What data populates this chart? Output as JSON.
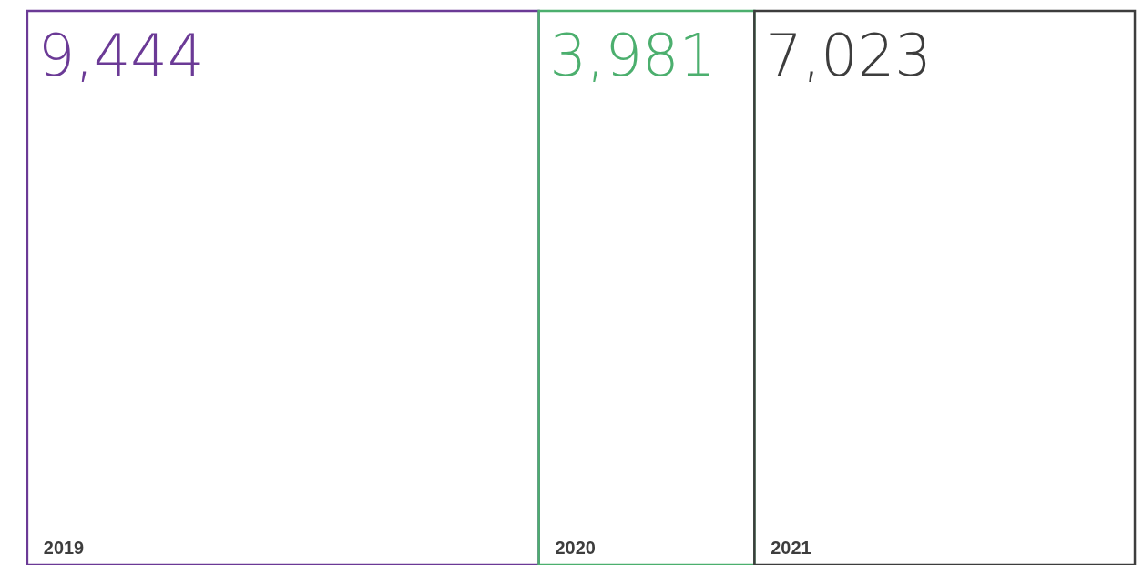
{
  "chart_data": {
    "type": "other",
    "categories": [
      "2019",
      "2020",
      "2021"
    ],
    "values": [
      9444,
      3981,
      7023
    ],
    "colors": [
      "#6b3a96",
      "#4caf6e",
      "#3d3d3d"
    ],
    "value_labels": [
      "9,444",
      "3,981",
      "7,023"
    ]
  }
}
